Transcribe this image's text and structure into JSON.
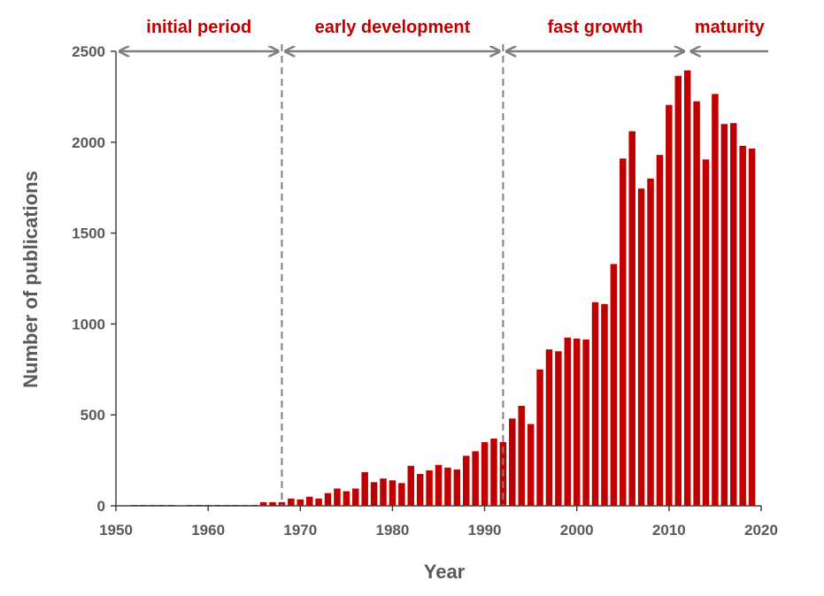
{
  "chart_data": {
    "type": "bar",
    "xlabel": "Year",
    "ylabel": "Number of publications",
    "xlim": [
      1950,
      2020
    ],
    "ylim": [
      0,
      2500
    ],
    "x_ticks": [
      1950,
      1960,
      1970,
      1980,
      1990,
      2000,
      2010,
      2020
    ],
    "y_ticks": [
      0,
      500,
      1000,
      1500,
      2000,
      2500
    ],
    "grid": false,
    "bar_color": "#c00000",
    "years": [
      1952,
      1953,
      1954,
      1955,
      1956,
      1957,
      1958,
      1959,
      1960,
      1961,
      1962,
      1963,
      1964,
      1965,
      1966,
      1967,
      1968,
      1969,
      1970,
      1971,
      1972,
      1973,
      1974,
      1975,
      1976,
      1977,
      1978,
      1979,
      1980,
      1981,
      1982,
      1983,
      1984,
      1985,
      1986,
      1987,
      1988,
      1989,
      1990,
      1991,
      1992,
      1993,
      1994,
      1995,
      1996,
      1997,
      1998,
      1999,
      2000,
      2001,
      2002,
      2003,
      2004,
      2005,
      2006,
      2007,
      2008,
      2009,
      2010,
      2011,
      2012,
      2013,
      2014,
      2015,
      2016,
      2017,
      2018,
      2019
    ],
    "values": [
      5,
      5,
      5,
      5,
      5,
      0,
      5,
      5,
      5,
      5,
      5,
      5,
      5,
      5,
      20,
      20,
      20,
      40,
      35,
      50,
      40,
      70,
      95,
      80,
      95,
      185,
      130,
      150,
      140,
      125,
      220,
      175,
      195,
      225,
      210,
      200,
      275,
      300,
      350,
      370,
      350,
      480,
      550,
      450,
      750,
      860,
      850,
      925,
      920,
      915,
      1120,
      1110,
      1330,
      1910,
      2060,
      1745,
      1800,
      1930,
      2205,
      2365,
      2395,
      2225,
      1905,
      2265,
      2100,
      2105,
      1980,
      1965
    ],
    "periods": [
      {
        "label": "initial period",
        "start": 1950,
        "end": 1968
      },
      {
        "label": "early development",
        "start": 1968,
        "end": 1992
      },
      {
        "label": "fast growth",
        "start": 1992,
        "end": 2012
      },
      {
        "label": "maturity",
        "start": 2012,
        "end": 2020
      }
    ],
    "dividers": [
      1968,
      1992
    ],
    "arrow_color": "#7f7f7f",
    "divider_color": "#7f7f7f"
  }
}
